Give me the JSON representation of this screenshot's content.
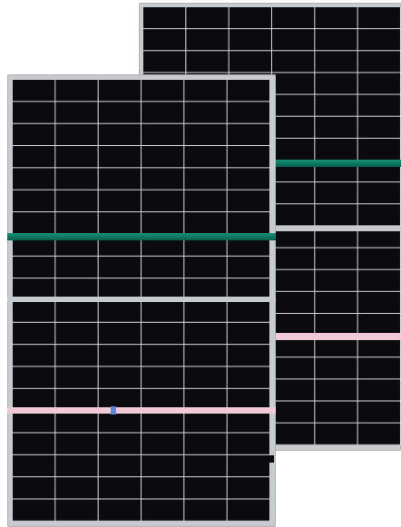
{
  "scene": {
    "background": "#ffffff"
  },
  "panels": [
    {
      "id": "back",
      "frame_color": "#c8cbce",
      "cell_color": "#0b0b0d",
      "grid_line_color": "#d9dde0",
      "columns": 6,
      "rows_top": 10,
      "rows_bottom": 10,
      "green_stripe_color": "#0f7a64",
      "pink_stripe_color": "#f2c9d6"
    },
    {
      "id": "front",
      "frame_color": "#c8cbce",
      "cell_color": "#0b0b0d",
      "grid_line_color": "#d9dde0",
      "columns": 6,
      "rows_top": 10,
      "rows_bottom": 10,
      "green_stripe_color": "#0f7a64",
      "pink_stripe_color": "#f2c9d6"
    }
  ]
}
